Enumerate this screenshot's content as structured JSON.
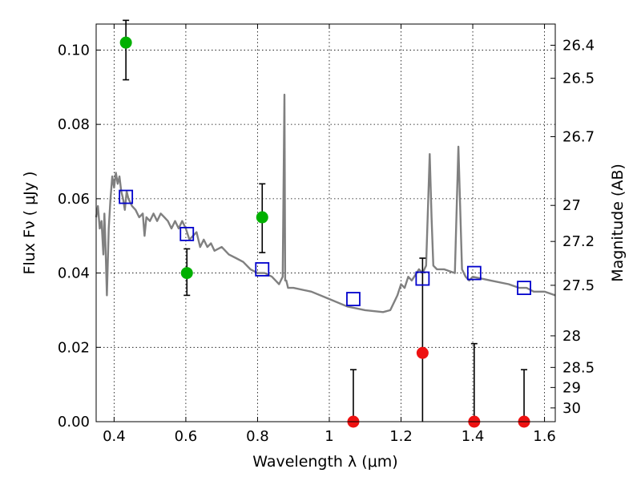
{
  "chart_data": {
    "type": "scatter",
    "xlabel": "Wavelength  λ (μm)",
    "ylabel": "Flux  Fν  ( μJy )",
    "ylabel_right": "Magnitude (AB)",
    "xlim": [
      0.35,
      1.63
    ],
    "ylim": [
      0.0,
      0.107
    ],
    "grid": true,
    "x_ticks": [
      0.4,
      0.6,
      0.8,
      1.0,
      1.2,
      1.4,
      1.6
    ],
    "x_tick_labels": [
      "0.4",
      "0.6",
      "0.8",
      "1",
      "1.2",
      "1.4",
      "1.6"
    ],
    "y_ticks": [
      0.0,
      0.02,
      0.04,
      0.06,
      0.08,
      0.1
    ],
    "y_tick_labels": [
      "0.00",
      "0.02",
      "0.04",
      "0.06",
      "0.08",
      "0.10"
    ],
    "right_ticks": [
      {
        "flux": 0.1013,
        "label": "26.4"
      },
      {
        "flux": 0.0924,
        "label": "26.5"
      },
      {
        "flux": 0.0767,
        "label": "26.7"
      },
      {
        "flux": 0.0582,
        "label": "27"
      },
      {
        "flux": 0.0485,
        "label": "27.2"
      },
      {
        "flux": 0.0367,
        "label": "27.5"
      },
      {
        "flux": 0.0231,
        "label": "28"
      },
      {
        "flux": 0.0146,
        "label": "28.5"
      },
      {
        "flux": 0.0092,
        "label": "29"
      },
      {
        "flux": 0.0037,
        "label": "30"
      }
    ],
    "colors": {
      "template": "#808080",
      "model": "#0000cc",
      "detection": "#00b000",
      "nondetection": "#ee1111",
      "errorbar": "#000000"
    },
    "series": [
      {
        "kind": "line",
        "x": [
          0.35,
          0.355,
          0.36,
          0.365,
          0.37,
          0.373,
          0.376,
          0.38,
          0.385,
          0.39,
          0.395,
          0.4,
          0.405,
          0.41,
          0.415,
          0.42,
          0.425,
          0.43,
          0.435,
          0.44,
          0.45,
          0.46,
          0.47,
          0.48,
          0.485,
          0.49,
          0.5,
          0.51,
          0.52,
          0.53,
          0.54,
          0.55,
          0.56,
          0.57,
          0.58,
          0.59,
          0.6,
          0.61,
          0.62,
          0.63,
          0.64,
          0.65,
          0.66,
          0.67,
          0.68,
          0.7,
          0.72,
          0.74,
          0.76,
          0.78,
          0.8,
          0.82,
          0.84,
          0.86,
          0.87,
          0.875,
          0.877,
          0.88,
          0.885,
          0.9,
          0.95,
          1.0,
          1.05,
          1.1,
          1.15,
          1.17,
          1.19,
          1.2,
          1.21,
          1.22,
          1.23,
          1.25,
          1.26,
          1.27,
          1.28,
          1.285,
          1.29,
          1.3,
          1.32,
          1.35,
          1.36,
          1.37,
          1.38,
          1.39,
          1.4,
          1.45,
          1.5,
          1.53,
          1.55,
          1.57,
          1.6,
          1.63
        ],
        "y": [
          0.055,
          0.058,
          0.052,
          0.054,
          0.045,
          0.056,
          0.048,
          0.034,
          0.052,
          0.06,
          0.066,
          0.063,
          0.067,
          0.064,
          0.066,
          0.062,
          0.06,
          0.057,
          0.062,
          0.06,
          0.058,
          0.057,
          0.055,
          0.056,
          0.05,
          0.055,
          0.054,
          0.056,
          0.054,
          0.056,
          0.055,
          0.054,
          0.052,
          0.054,
          0.052,
          0.054,
          0.052,
          0.049,
          0.05,
          0.051,
          0.047,
          0.049,
          0.047,
          0.048,
          0.046,
          0.047,
          0.045,
          0.044,
          0.043,
          0.041,
          0.04,
          0.04,
          0.039,
          0.037,
          0.039,
          0.088,
          0.038,
          0.038,
          0.036,
          0.036,
          0.035,
          0.033,
          0.031,
          0.03,
          0.0295,
          0.03,
          0.034,
          0.037,
          0.036,
          0.039,
          0.038,
          0.041,
          0.04,
          0.042,
          0.072,
          0.055,
          0.042,
          0.041,
          0.041,
          0.04,
          0.074,
          0.041,
          0.039,
          0.038,
          0.039,
          0.038,
          0.037,
          0.036,
          0.036,
          0.035,
          0.035,
          0.034
        ]
      },
      {
        "kind": "square",
        "x": [
          0.433,
          0.603,
          0.813,
          1.067,
          1.26,
          1.404,
          1.543
        ],
        "y": [
          0.0605,
          0.0505,
          0.041,
          0.033,
          0.0385,
          0.04,
          0.036
        ]
      },
      {
        "kind": "point",
        "category": "detection",
        "x": [
          0.433,
          0.603,
          0.813
        ],
        "y": [
          0.102,
          0.04,
          0.055
        ],
        "yerr_low": [
          0.092,
          0.034,
          0.0455
        ],
        "yerr_high": [
          0.108,
          0.0465,
          0.064
        ]
      },
      {
        "kind": "point",
        "category": "nondetection",
        "x": [
          1.067,
          1.26,
          1.404,
          1.543
        ],
        "y": [
          0.0,
          0.0185,
          0.0,
          0.0
        ],
        "yerr_low": [
          0.0,
          0.0,
          0.0,
          0.0
        ],
        "yerr_high": [
          0.014,
          0.044,
          0.021,
          0.014
        ]
      }
    ]
  }
}
